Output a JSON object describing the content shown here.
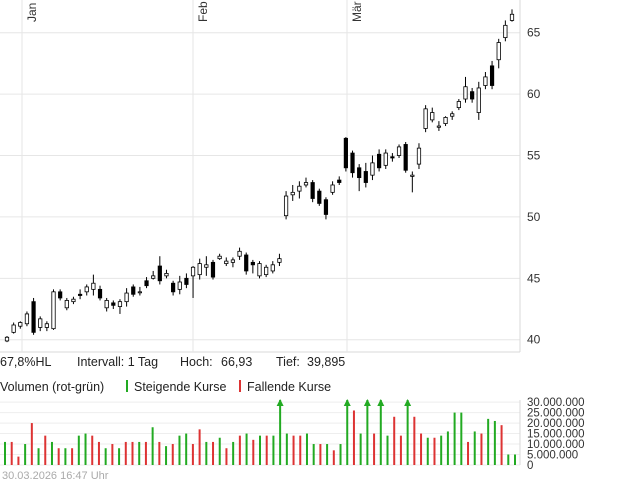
{
  "colors": {
    "up": "#22aa22",
    "down": "#dd3333",
    "grid": "#e6e6e6",
    "candle": "#000000"
  },
  "info": {
    "range_label": "67,8%HL",
    "interval_label": "Intervall: 1 Tag",
    "high_label": "Hoch:",
    "high_value": "66,93",
    "low_label": "Tief:",
    "low_value": "39,895"
  },
  "volume_legend": {
    "title": "Volumen (rot-grün)",
    "rising": "Steigende Kurse",
    "falling": "Fallende Kurse"
  },
  "timestamp": "30.03.2026 16:47 Uhr",
  "chart_data": [
    {
      "type": "candlestick",
      "x_labels": [
        "Jan",
        "Feb",
        "Mär"
      ],
      "y_ticks": [
        40,
        45,
        50,
        55,
        60,
        65
      ],
      "ylim": [
        39,
        67.5
      ],
      "grid": true,
      "candles": [
        [
          39.9,
          40.2,
          39.8,
          40.3
        ],
        [
          40.6,
          41.2,
          40.5,
          41.4
        ],
        [
          41.1,
          41.4,
          40.9,
          41.5
        ],
        [
          41.3,
          42.1,
          41.1,
          42.3
        ],
        [
          43.1,
          40.6,
          40.4,
          43.4
        ],
        [
          41.0,
          41.7,
          40.7,
          41.9
        ],
        [
          41.0,
          41.3,
          40.7,
          41.5
        ],
        [
          40.9,
          43.9,
          40.8,
          44.1
        ],
        [
          43.9,
          43.4,
          43.2,
          44.1
        ],
        [
          42.6,
          43.2,
          42.4,
          43.4
        ],
        [
          43.1,
          43.3,
          42.9,
          43.5
        ],
        [
          43.7,
          43.6,
          43.3,
          44.1
        ],
        [
          43.9,
          44.3,
          43.6,
          44.5
        ],
        [
          44.1,
          44.6,
          43.6,
          45.3
        ],
        [
          44.1,
          43.4,
          43.2,
          44.4
        ],
        [
          42.6,
          43.2,
          42.3,
          43.4
        ],
        [
          43.0,
          42.8,
          42.5,
          43.2
        ],
        [
          42.7,
          43.1,
          42.1,
          43.3
        ],
        [
          43.1,
          43.8,
          42.7,
          44.2
        ],
        [
          44.3,
          43.7,
          43.5,
          44.5
        ],
        [
          43.9,
          43.9,
          43.6,
          44.3
        ],
        [
          44.8,
          44.4,
          44.2,
          45.1
        ],
        [
          45.0,
          45.2,
          44.9,
          45.6
        ],
        [
          46.0,
          44.8,
          44.5,
          46.8
        ],
        [
          45.2,
          45.4,
          45.0,
          45.7
        ],
        [
          44.6,
          43.9,
          43.6,
          44.8
        ],
        [
          44.1,
          44.7,
          43.7,
          45.2
        ],
        [
          45.0,
          44.5,
          44.2,
          45.4
        ],
        [
          45.2,
          45.9,
          43.4,
          46.0
        ],
        [
          45.3,
          46.2,
          44.9,
          46.6
        ],
        [
          45.9,
          46.1,
          45.2,
          46.8
        ],
        [
          46.3,
          45.1,
          44.9,
          46.5
        ],
        [
          46.6,
          46.8,
          46.5,
          47.0
        ],
        [
          46.2,
          46.4,
          46.0,
          46.7
        ],
        [
          46.3,
          46.5,
          45.9,
          46.7
        ],
        [
          46.8,
          47.2,
          46.5,
          47.5
        ],
        [
          46.9,
          45.6,
          45.3,
          47.1
        ],
        [
          46.3,
          46.1,
          45.4,
          46.5
        ],
        [
          45.2,
          46.2,
          45.0,
          46.4
        ],
        [
          45.3,
          45.9,
          45.1,
          46.1
        ],
        [
          45.6,
          46.1,
          45.4,
          46.4
        ],
        [
          46.3,
          46.6,
          46.0,
          47.0
        ],
        [
          50.1,
          51.7,
          49.8,
          52.1
        ],
        [
          51.8,
          52.0,
          51.3,
          52.6
        ],
        [
          52.1,
          52.5,
          51.5,
          52.9
        ],
        [
          52.6,
          52.8,
          52.4,
          53.2
        ],
        [
          52.8,
          51.5,
          51.2,
          53.0
        ],
        [
          52.1,
          51.1,
          50.9,
          52.3
        ],
        [
          51.4,
          50.2,
          49.8,
          51.6
        ],
        [
          52.0,
          52.6,
          51.8,
          52.9
        ],
        [
          53.0,
          52.8,
          52.6,
          53.3
        ],
        [
          56.4,
          54.0,
          53.7,
          56.5
        ],
        [
          55.2,
          53.6,
          53.2,
          55.4
        ],
        [
          54.0,
          53.2,
          52.1,
          54.3
        ],
        [
          53.7,
          52.8,
          52.4,
          54.4
        ],
        [
          53.4,
          54.4,
          53.0,
          55.0
        ],
        [
          55.1,
          54.0,
          53.7,
          55.5
        ],
        [
          54.2,
          55.2,
          53.9,
          55.5
        ],
        [
          54.9,
          54.8,
          54.5,
          55.2
        ],
        [
          55.0,
          55.7,
          54.8,
          55.9
        ],
        [
          55.9,
          53.8,
          53.6,
          56.1
        ],
        [
          53.3,
          53.4,
          52.0,
          53.7
        ],
        [
          54.3,
          55.6,
          53.9,
          56.0
        ],
        [
          57.2,
          58.8,
          56.9,
          59.1
        ],
        [
          57.9,
          58.5,
          57.7,
          58.9
        ],
        [
          57.3,
          57.4,
          57.0,
          57.8
        ],
        [
          57.6,
          58.1,
          57.4,
          58.2
        ],
        [
          58.2,
          58.4,
          57.9,
          58.6
        ],
        [
          58.9,
          59.4,
          58.7,
          59.6
        ],
        [
          59.6,
          60.6,
          59.3,
          61.4
        ],
        [
          60.2,
          59.6,
          59.3,
          60.5
        ],
        [
          58.5,
          60.5,
          57.9,
          61.0
        ],
        [
          60.7,
          61.4,
          60.4,
          61.8
        ],
        [
          62.3,
          60.7,
          60.4,
          62.7
        ],
        [
          62.8,
          64.2,
          62.1,
          64.5
        ],
        [
          64.6,
          65.6,
          64.3,
          66.0
        ],
        [
          66.0,
          66.5,
          65.9,
          66.9
        ]
      ]
    },
    {
      "type": "bar",
      "title": "Volumen (rot-grün)",
      "y_ticks": [
        0,
        5000000,
        10000000,
        15000000,
        20000000,
        25000000,
        30000000
      ],
      "y_tick_labels": [
        "0",
        "5.000.000",
        "10.000.000",
        "15.000.000",
        "20.000.000",
        "25.000.000",
        "30.000.000"
      ],
      "ylim": [
        0,
        31000000
      ],
      "bars": [
        [
          11000000,
          "up"
        ],
        [
          11000000,
          "down"
        ],
        [
          4000000,
          "down"
        ],
        [
          10000000,
          "up"
        ],
        [
          20000000,
          "down"
        ],
        [
          8000000,
          "up"
        ],
        [
          14000000,
          "down"
        ],
        [
          11000000,
          "up"
        ],
        [
          8000000,
          "down"
        ],
        [
          8000000,
          "up"
        ],
        [
          8000000,
          "down"
        ],
        [
          14000000,
          "up"
        ],
        [
          15000000,
          "up"
        ],
        [
          14000000,
          "down"
        ],
        [
          11000000,
          "down"
        ],
        [
          8000000,
          "up"
        ],
        [
          10000000,
          "down"
        ],
        [
          8000000,
          "up"
        ],
        [
          11000000,
          "down"
        ],
        [
          11000000,
          "down"
        ],
        [
          11000000,
          "up"
        ],
        [
          11000000,
          "down"
        ],
        [
          18000000,
          "up"
        ],
        [
          11000000,
          "down"
        ],
        [
          9000000,
          "up"
        ],
        [
          10000000,
          "down"
        ],
        [
          14000000,
          "up"
        ],
        [
          15000000,
          "up"
        ],
        [
          10000000,
          "down"
        ],
        [
          17000000,
          "down"
        ],
        [
          11000000,
          "up"
        ],
        [
          11000000,
          "down"
        ],
        [
          13000000,
          "up"
        ],
        [
          8000000,
          "down"
        ],
        [
          11000000,
          "up"
        ],
        [
          14000000,
          "down"
        ],
        [
          15000000,
          "up"
        ],
        [
          12000000,
          "down"
        ],
        [
          14000000,
          "up"
        ],
        [
          14000000,
          "down"
        ],
        [
          14000000,
          "up"
        ],
        [
          31000000,
          "up"
        ],
        [
          15000000,
          "up"
        ],
        [
          14000000,
          "down"
        ],
        [
          14000000,
          "down"
        ],
        [
          15000000,
          "up"
        ],
        [
          10000000,
          "up"
        ],
        [
          10000000,
          "down"
        ],
        [
          10000000,
          "up"
        ],
        [
          7000000,
          "down"
        ],
        [
          10000000,
          "up"
        ],
        [
          31000000,
          "up"
        ],
        [
          26000000,
          "down"
        ],
        [
          15000000,
          "up"
        ],
        [
          31000000,
          "up"
        ],
        [
          15000000,
          "down"
        ],
        [
          31000000,
          "up"
        ],
        [
          14000000,
          "up"
        ],
        [
          23000000,
          "down"
        ],
        [
          14000000,
          "down"
        ],
        [
          31000000,
          "up"
        ],
        [
          23000000,
          "down"
        ],
        [
          15000000,
          "down"
        ],
        [
          13000000,
          "up"
        ],
        [
          13000000,
          "down"
        ],
        [
          14000000,
          "up"
        ],
        [
          16000000,
          "up"
        ],
        [
          25000000,
          "up"
        ],
        [
          25000000,
          "up"
        ],
        [
          11000000,
          "down"
        ],
        [
          16000000,
          "up"
        ],
        [
          15000000,
          "down"
        ],
        [
          22000000,
          "up"
        ],
        [
          21000000,
          "up"
        ],
        [
          19000000,
          "down"
        ],
        [
          5000000,
          "up"
        ],
        [
          5000000,
          "up"
        ]
      ],
      "arrows_at": [
        41,
        51,
        54,
        56,
        60
      ]
    }
  ]
}
